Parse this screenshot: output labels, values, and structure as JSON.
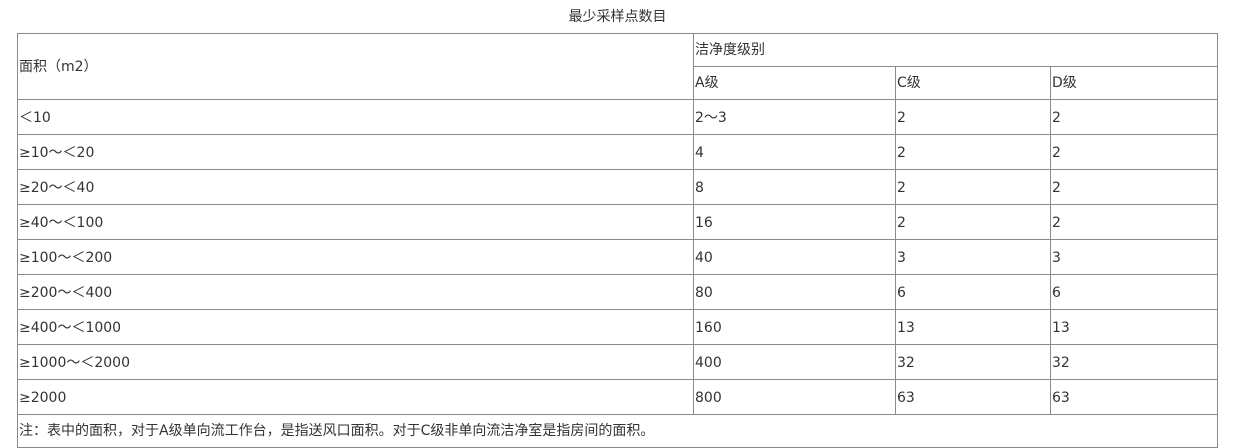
{
  "title": "最少采样点数目",
  "header": {
    "area": "面积（m2）",
    "cleanliness": "洁净度级别",
    "grades": [
      "A级",
      "C级",
      "D级"
    ]
  },
  "rows": [
    {
      "area": "＜10",
      "a": "2～3",
      "c": "2",
      "d": "2"
    },
    {
      "area": "≥10～＜20",
      "a": "4",
      "c": "2",
      "d": "2"
    },
    {
      "area": "≥20～＜40",
      "a": "8",
      "c": "2",
      "d": "2"
    },
    {
      "area": "≥40～＜100",
      "a": "16",
      "c": "2",
      "d": "2"
    },
    {
      "area": "≥100～＜200",
      "a": "40",
      "c": "3",
      "d": "3"
    },
    {
      "area": "≥200～＜400",
      "a": "80",
      "c": "6",
      "d": "6"
    },
    {
      "area": "≥400～＜1000",
      "a": "160",
      "c": "13",
      "d": "13"
    },
    {
      "area": "≥1000～＜2000",
      "a": "400",
      "c": "32",
      "d": "32"
    },
    {
      "area": "≥2000",
      "a": "800",
      "c": "63",
      "d": "63"
    }
  ],
  "note": "注：表中的面积，对于A级单向流工作台，是指送风口面积。对于C级非单向流洁净室是指房间的面积。"
}
